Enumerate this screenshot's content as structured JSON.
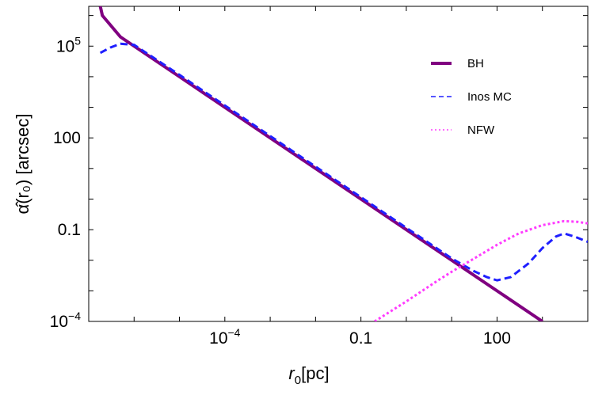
{
  "chart_data": {
    "type": "line",
    "xscale": "log",
    "yscale": "log",
    "xlim": [
      1e-07,
      10000
    ],
    "ylim": [
      0.0001,
      2000000
    ],
    "xticks": [
      {
        "value": 0.0001,
        "mant": "10",
        "exp": "−4"
      },
      {
        "value": 0.1,
        "mant": "0.1",
        "exp": ""
      },
      {
        "value": 100,
        "mant": "100",
        "exp": ""
      }
    ],
    "yticks": [
      {
        "value": 0.0001,
        "mant": "10",
        "exp": "−4"
      },
      {
        "value": 0.1,
        "mant": "0.1",
        "exp": ""
      },
      {
        "value": 100,
        "mant": "100",
        "exp": ""
      },
      {
        "value": 100000,
        "mant": "10",
        "exp": "5"
      }
    ],
    "xlabel": {
      "var": "r",
      "sub": "0",
      "unit": "[pc]"
    },
    "ylabel": {
      "text": "α̂(r₀) [arcsec]"
    },
    "legend_position": "top-right",
    "series": [
      {
        "name": "BH",
        "color": "#800080",
        "style": "solid",
        "points": [
          [
            1.8e-07,
            2000000
          ],
          [
            2e-07,
            1000000
          ],
          [
            5e-07,
            200000
          ],
          [
            1e-06,
            100000
          ],
          [
            1e-05,
            10000
          ],
          [
            0.0001,
            1000
          ],
          [
            0.001,
            100
          ],
          [
            0.01,
            10
          ],
          [
            0.1,
            1
          ],
          [
            1,
            0.1
          ],
          [
            10,
            0.01
          ],
          [
            100,
            0.001
          ],
          [
            1000,
            0.0001
          ]
        ]
      },
      {
        "name": "Inos MC",
        "color": "#1f1fff",
        "style": "dashed",
        "points": [
          [
            1.8e-07,
            60000
          ],
          [
            3e-07,
            90000
          ],
          [
            5e-07,
            120000
          ],
          [
            1e-06,
            110000
          ],
          [
            1e-05,
            11500
          ],
          [
            0.0001,
            1150
          ],
          [
            0.001,
            115
          ],
          [
            0.01,
            11.5
          ],
          [
            0.1,
            1.15
          ],
          [
            1,
            0.115
          ],
          [
            10,
            0.0115
          ],
          [
            30,
            0.0045
          ],
          [
            60,
            0.0028
          ],
          [
            100,
            0.0022
          ],
          [
            200,
            0.0028
          ],
          [
            500,
            0.008
          ],
          [
            1000,
            0.025
          ],
          [
            2000,
            0.06
          ],
          [
            3000,
            0.075
          ],
          [
            5000,
            0.06
          ],
          [
            10000,
            0.04
          ]
        ]
      },
      {
        "name": "NFW",
        "color": "#ff3cff",
        "style": "dotted",
        "points": [
          [
            0.2,
            0.0001
          ],
          [
            1,
            0.00045
          ],
          [
            5,
            0.0022
          ],
          [
            10,
            0.0042
          ],
          [
            30,
            0.011
          ],
          [
            100,
            0.032
          ],
          [
            300,
            0.075
          ],
          [
            1000,
            0.14
          ],
          [
            3000,
            0.19
          ],
          [
            6000,
            0.18
          ],
          [
            10000,
            0.16
          ]
        ]
      }
    ]
  }
}
